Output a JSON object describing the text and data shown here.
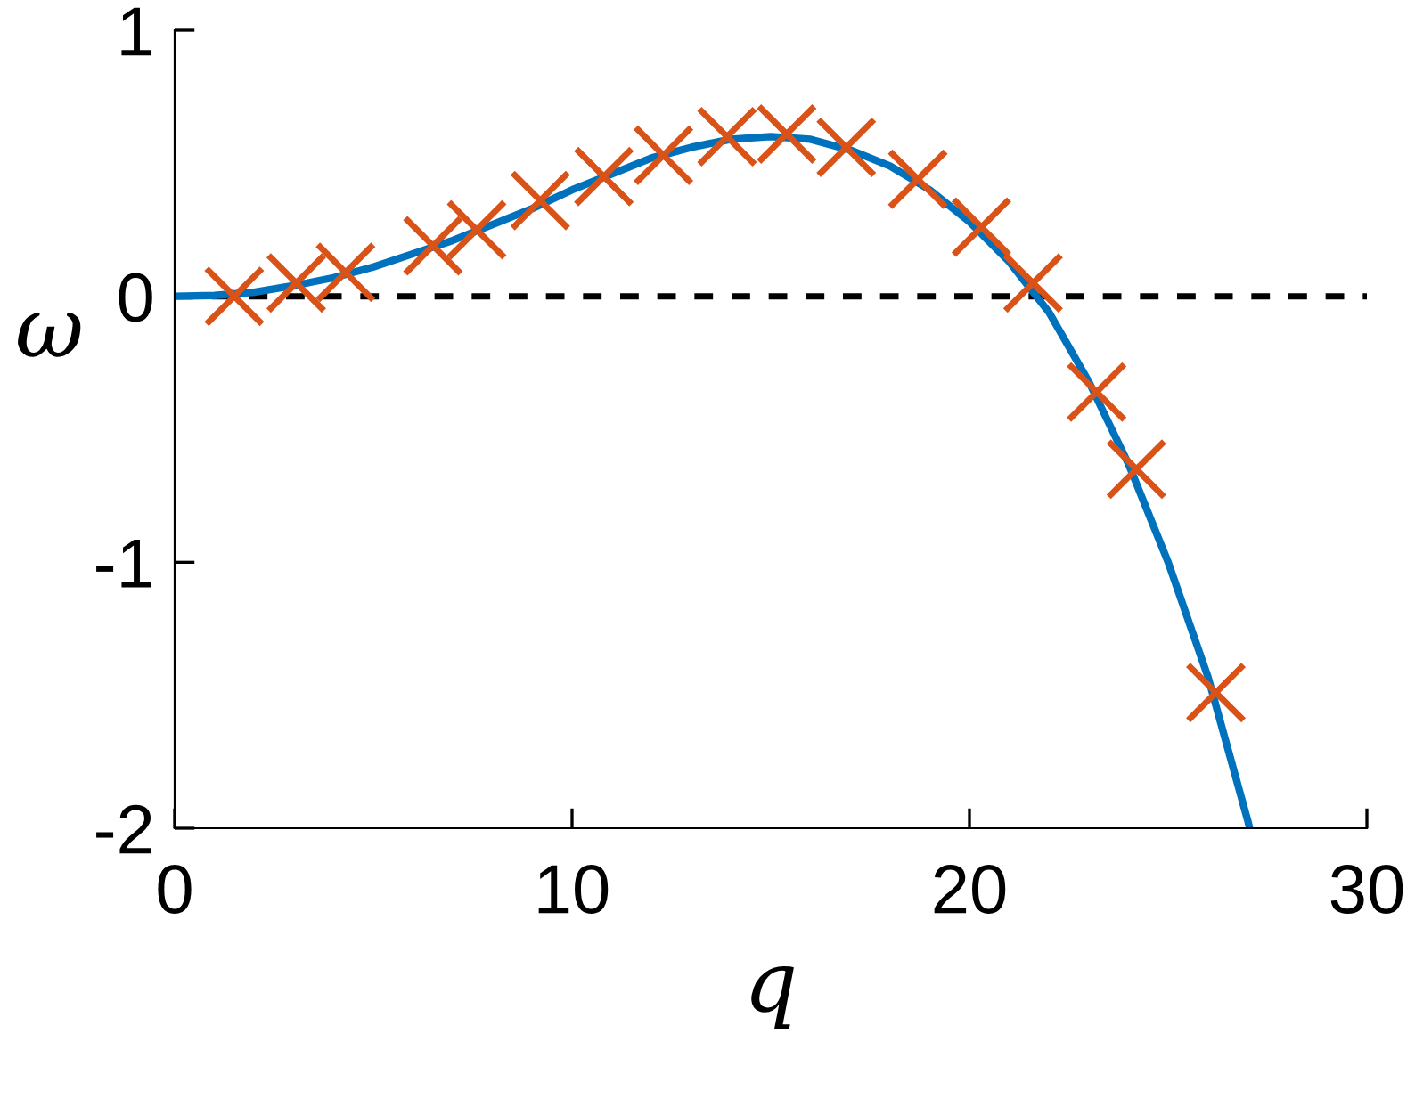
{
  "chart_data": {
    "type": "line",
    "xlabel": "q",
    "ylabel": "ω",
    "xlim": [
      0,
      30
    ],
    "ylim": [
      -2,
      1
    ],
    "xticks": [
      0,
      10,
      20,
      30
    ],
    "yticks": [
      -2,
      -1,
      0,
      1
    ],
    "grid": false,
    "series": [
      {
        "color": "#0072bd",
        "marker": "none",
        "line_style": "solid",
        "x": [
          0,
          1,
          2,
          3,
          4,
          5,
          6,
          7,
          8,
          9,
          10,
          11,
          12,
          13,
          14,
          15,
          16,
          17,
          18,
          19,
          20,
          21,
          22,
          23,
          24,
          25,
          26,
          27,
          27.05
        ],
        "values": [
          0,
          0.003,
          0.015,
          0.04,
          0.07,
          0.11,
          0.16,
          0.21,
          0.27,
          0.33,
          0.4,
          0.46,
          0.52,
          0.56,
          0.59,
          0.6,
          0.59,
          0.55,
          0.49,
          0.4,
          0.28,
          0.13,
          -0.06,
          -0.32,
          -0.63,
          -1.0,
          -1.43,
          -1.97,
          -2.0
        ]
      },
      {
        "type": "scatter",
        "color": "#d95319",
        "marker": "cross",
        "x": [
          1.5,
          3.06,
          4.3,
          6.5,
          7.6,
          9.2,
          10.8,
          12.3,
          13.9,
          15.4,
          16.9,
          18.7,
          20.3,
          21.6,
          23.2,
          24.2,
          26.2
        ],
        "values": [
          0,
          0.05,
          0.09,
          0.19,
          0.25,
          0.36,
          0.45,
          0.53,
          0.6,
          0.61,
          0.56,
          0.44,
          0.26,
          0.05,
          -0.36,
          -0.65,
          -1.49
        ]
      }
    ],
    "ref_lines": [
      {
        "axis": "y",
        "value": 0,
        "color": "#000000",
        "line_style": "dashed"
      }
    ]
  }
}
